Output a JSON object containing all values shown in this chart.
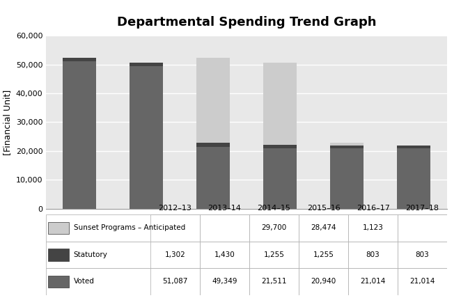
{
  "title": "Departmental Spending Trend Graph",
  "categories": [
    "2012–13",
    "2013–14",
    "2014–15",
    "2015–16",
    "2016–17",
    "2017–18"
  ],
  "voted": [
    51087,
    49349,
    21511,
    20940,
    21014,
    21014
  ],
  "statutory": [
    1302,
    1430,
    1255,
    1255,
    803,
    803
  ],
  "sunset": [
    0,
    0,
    29700,
    28474,
    1123,
    0
  ],
  "color_voted": "#666666",
  "color_statutory": "#444444",
  "color_sunset": "#cccccc",
  "ylabel": "[Financial Unit]",
  "ylim": [
    0,
    60000
  ],
  "yticks": [
    0,
    10000,
    20000,
    30000,
    40000,
    50000,
    60000
  ],
  "legend_labels": [
    "Sunset Programs – Anticipated",
    "Statutory",
    "Voted"
  ],
  "table_data": {
    "Sunset Programs – Anticipated": [
      "",
      "",
      "29,700",
      "28,474",
      "1,123",
      ""
    ],
    "Statutory": [
      "1,302",
      "1,430",
      "1,255",
      "1,255",
      "803",
      "803"
    ],
    "Voted": [
      "51,087",
      "49,349",
      "21,511",
      "20,940",
      "21,014",
      "21,014"
    ]
  },
  "background_color": "#e8e8e8",
  "figure_bg": "#ffffff",
  "bar_width": 0.5,
  "title_fontsize": 13,
  "tick_fontsize": 8,
  "table_fontsize": 7.5
}
